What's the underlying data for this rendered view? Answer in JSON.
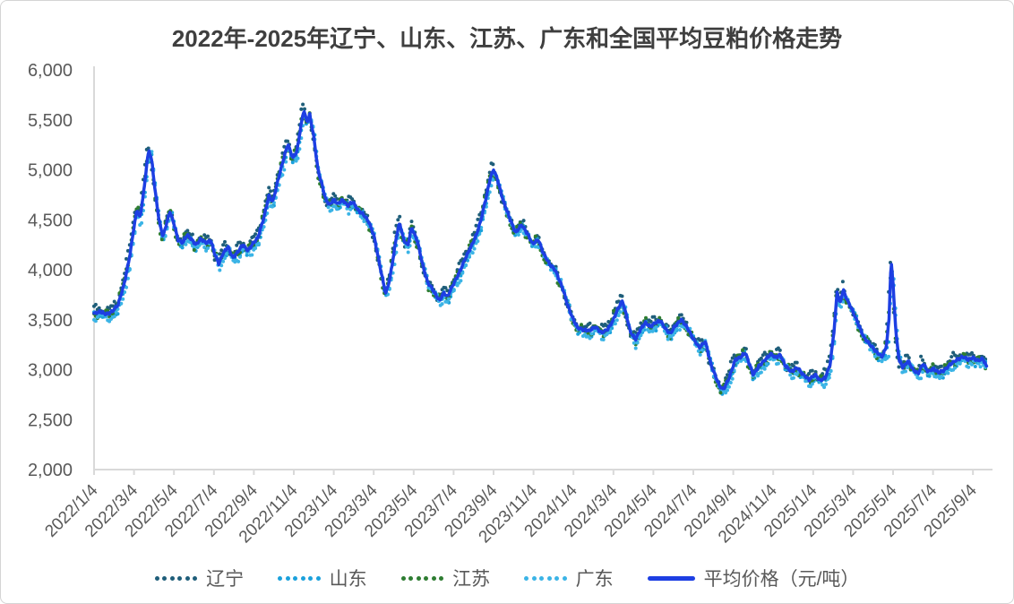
{
  "window": {
    "background": "#ffffff",
    "border_color": "#d4d4d4"
  },
  "title": "2022年-2025年辽宁、山东、江苏、广东和全国平均豆粕价格走势",
  "colors": {
    "title_text": "#3f3f3f",
    "axis_line": "#d9d9d9",
    "tick_text": "#595959",
    "average_line": "#1d3fe3",
    "liaoning": "#1f5e7a",
    "shandong": "#1ba1dc",
    "jiangsu": "#2e7d32",
    "guangdong": "#3bb4e6"
  },
  "chart_data": {
    "type": "line",
    "title": "2022年-2025年辽宁、山东、江苏、广东和全国平均豆粕价格走势",
    "xlabel": "",
    "ylabel": "元/吨",
    "ylim": [
      2000,
      6000
    ],
    "grid": false,
    "legend_position": "bottom",
    "y_axis": {
      "min": 2000,
      "max": 6000,
      "tick_step": 500,
      "tick_labels": [
        "6,000",
        "5,500",
        "5,000",
        "4,500",
        "4,000",
        "3,500",
        "3,000",
        "2,500",
        "2,000"
      ]
    },
    "x_axis": {
      "tick_interval_months": 2,
      "tick_labels": [
        "2022/1/4",
        "2022/3/4",
        "2022/5/4",
        "2022/7/4",
        "2022/9/4",
        "2022/11/4",
        "2023/1/4",
        "2023/3/4",
        "2023/5/4",
        "2023/7/4",
        "2023/9/4",
        "2023/11/4",
        "2024/1/4",
        "2024/3/4",
        "2024/5/4",
        "2024/7/4",
        "2024/9/4",
        "2024/11/4",
        "2025/1/4",
        "2025/3/4",
        "2025/5/4",
        "2025/7/4",
        "2025/9/4"
      ]
    },
    "average_series": {
      "id": "average",
      "name": "平均价格（元/吨）",
      "color": "#1d3fe3",
      "style": "solid",
      "points_format": "[months_since_2022_01, price_yuan_per_ton]",
      "points": [
        [
          0,
          3560
        ],
        [
          0.3,
          3580
        ],
        [
          0.6,
          3555
        ],
        [
          0.9,
          3580
        ],
        [
          1.2,
          3650
        ],
        [
          1.5,
          3850
        ],
        [
          1.8,
          4150
        ],
        [
          2.0,
          4430
        ],
        [
          2.15,
          4600
        ],
        [
          2.3,
          4520
        ],
        [
          2.5,
          4800
        ],
        [
          2.65,
          5080
        ],
        [
          2.75,
          5200
        ],
        [
          2.9,
          5080
        ],
        [
          3.05,
          4800
        ],
        [
          3.25,
          4500
        ],
        [
          3.45,
          4330
        ],
        [
          3.65,
          4480
        ],
        [
          3.8,
          4580
        ],
        [
          4.0,
          4460
        ],
        [
          4.2,
          4300
        ],
        [
          4.45,
          4270
        ],
        [
          4.65,
          4350
        ],
        [
          4.85,
          4310
        ],
        [
          5.1,
          4250
        ],
        [
          5.35,
          4310
        ],
        [
          5.6,
          4270
        ],
        [
          5.85,
          4290
        ],
        [
          6.05,
          4150
        ],
        [
          6.25,
          4060
        ],
        [
          6.45,
          4160
        ],
        [
          6.7,
          4230
        ],
        [
          6.95,
          4120
        ],
        [
          7.2,
          4180
        ],
        [
          7.45,
          4250
        ],
        [
          7.7,
          4190
        ],
        [
          7.95,
          4260
        ],
        [
          8.2,
          4320
        ],
        [
          8.5,
          4520
        ],
        [
          8.75,
          4740
        ],
        [
          8.95,
          4680
        ],
        [
          9.2,
          4890
        ],
        [
          9.45,
          5080
        ],
        [
          9.7,
          5260
        ],
        [
          9.95,
          5120
        ],
        [
          10.15,
          5180
        ],
        [
          10.35,
          5430
        ],
        [
          10.5,
          5600
        ],
        [
          10.65,
          5480
        ],
        [
          10.8,
          5550
        ],
        [
          11.0,
          5330
        ],
        [
          11.2,
          5010
        ],
        [
          11.4,
          4860
        ],
        [
          11.6,
          4700
        ],
        [
          11.8,
          4650
        ],
        [
          12.0,
          4700
        ],
        [
          12.2,
          4660
        ],
        [
          12.45,
          4700
        ],
        [
          12.7,
          4640
        ],
        [
          12.95,
          4680
        ],
        [
          13.2,
          4600
        ],
        [
          13.5,
          4550
        ],
        [
          13.75,
          4480
        ],
        [
          14.0,
          4350
        ],
        [
          14.2,
          4150
        ],
        [
          14.4,
          3950
        ],
        [
          14.6,
          3760
        ],
        [
          14.8,
          3900
        ],
        [
          15.0,
          4150
        ],
        [
          15.15,
          4350
        ],
        [
          15.3,
          4470
        ],
        [
          15.5,
          4300
        ],
        [
          15.7,
          4240
        ],
        [
          15.9,
          4420
        ],
        [
          16.05,
          4350
        ],
        [
          16.2,
          4280
        ],
        [
          16.45,
          4050
        ],
        [
          16.7,
          3870
        ],
        [
          16.9,
          3820
        ],
        [
          17.1,
          3750
        ],
        [
          17.3,
          3690
        ],
        [
          17.5,
          3770
        ],
        [
          17.7,
          3730
        ],
        [
          17.9,
          3820
        ],
        [
          18.1,
          3900
        ],
        [
          18.35,
          4000
        ],
        [
          18.6,
          4120
        ],
        [
          18.85,
          4220
        ],
        [
          19.1,
          4330
        ],
        [
          19.35,
          4480
        ],
        [
          19.6,
          4700
        ],
        [
          19.85,
          4930
        ],
        [
          20.0,
          5000
        ],
        [
          20.2,
          4900
        ],
        [
          20.5,
          4680
        ],
        [
          20.8,
          4520
        ],
        [
          21.1,
          4370
        ],
        [
          21.4,
          4450
        ],
        [
          21.7,
          4360
        ],
        [
          21.95,
          4260
        ],
        [
          22.25,
          4300
        ],
        [
          22.5,
          4160
        ],
        [
          22.8,
          4060
        ],
        [
          23.1,
          3990
        ],
        [
          23.45,
          3820
        ],
        [
          23.7,
          3650
        ],
        [
          23.95,
          3520
        ],
        [
          24.2,
          3420
        ],
        [
          24.5,
          3400
        ],
        [
          24.8,
          3390
        ],
        [
          25.1,
          3430
        ],
        [
          25.4,
          3370
        ],
        [
          25.7,
          3400
        ],
        [
          25.95,
          3480
        ],
        [
          26.2,
          3600
        ],
        [
          26.45,
          3690
        ],
        [
          26.6,
          3580
        ],
        [
          26.85,
          3380
        ],
        [
          27.1,
          3300
        ],
        [
          27.35,
          3400
        ],
        [
          27.6,
          3470
        ],
        [
          27.85,
          3430
        ],
        [
          28.1,
          3470
        ],
        [
          28.35,
          3490
        ],
        [
          28.6,
          3410
        ],
        [
          28.85,
          3360
        ],
        [
          29.1,
          3440
        ],
        [
          29.4,
          3500
        ],
        [
          29.7,
          3420
        ],
        [
          30.0,
          3310
        ],
        [
          30.3,
          3220
        ],
        [
          30.6,
          3280
        ],
        [
          30.9,
          3040
        ],
        [
          31.3,
          2840
        ],
        [
          31.5,
          2800
        ],
        [
          31.8,
          2920
        ],
        [
          32.1,
          3100
        ],
        [
          32.4,
          3130
        ],
        [
          32.6,
          3170
        ],
        [
          32.8,
          3060
        ],
        [
          33.0,
          2950
        ],
        [
          33.3,
          3040
        ],
        [
          33.6,
          3100
        ],
        [
          33.9,
          3160
        ],
        [
          34.1,
          3120
        ],
        [
          34.35,
          3150
        ],
        [
          34.6,
          3040
        ],
        [
          34.9,
          2980
        ],
        [
          35.2,
          3020
        ],
        [
          35.5,
          2950
        ],
        [
          35.8,
          2900
        ],
        [
          36.1,
          2950
        ],
        [
          36.35,
          2890
        ],
        [
          36.6,
          2920
        ],
        [
          36.85,
          3050
        ],
        [
          37.05,
          3400
        ],
        [
          37.2,
          3780
        ],
        [
          37.35,
          3660
        ],
        [
          37.5,
          3800
        ],
        [
          37.65,
          3720
        ],
        [
          37.95,
          3600
        ],
        [
          38.25,
          3460
        ],
        [
          38.55,
          3320
        ],
        [
          38.85,
          3250
        ],
        [
          39.15,
          3180
        ],
        [
          39.45,
          3130
        ],
        [
          39.65,
          3220
        ],
        [
          39.8,
          3500
        ],
        [
          39.9,
          4100
        ],
        [
          40.0,
          3850
        ],
        [
          40.15,
          3350
        ],
        [
          40.3,
          3100
        ],
        [
          40.5,
          3020
        ],
        [
          40.75,
          3090
        ],
        [
          41.0,
          3000
        ],
        [
          41.25,
          2960
        ],
        [
          41.5,
          3060
        ],
        [
          41.75,
          2980
        ],
        [
          42.0,
          3010
        ],
        [
          42.3,
          2970
        ],
        [
          42.6,
          3000
        ],
        [
          42.9,
          3060
        ],
        [
          43.2,
          3100
        ],
        [
          43.5,
          3130
        ],
        [
          43.75,
          3100
        ],
        [
          44.0,
          3120
        ],
        [
          44.25,
          3090
        ],
        [
          44.5,
          3110
        ],
        [
          44.7,
          3020
        ]
      ]
    },
    "province_series": [
      {
        "id": "liaoning",
        "name": "辽宁",
        "color": "#1f5e7a",
        "style": "dotted",
        "relation": "tracks average closely",
        "render": {
          "bias": 30,
          "amplitude": 55,
          "lag": 0.28,
          "seed": 1
        }
      },
      {
        "id": "shandong",
        "name": "山东",
        "color": "#1ba1dc",
        "style": "dotted",
        "relation": "tracks average closely",
        "render": {
          "bias": -25,
          "amplitude": 50,
          "lag": -0.22,
          "seed": 2
        }
      },
      {
        "id": "jiangsu",
        "name": "江苏",
        "color": "#2e7d32",
        "style": "dotted",
        "relation": "tracks average closely",
        "render": {
          "bias": -5,
          "amplitude": 60,
          "lag": 0.16,
          "seed": 3
        }
      },
      {
        "id": "guangdong",
        "name": "广东",
        "color": "#3bb4e6",
        "style": "dotted",
        "relation": "tracks average closely",
        "render": {
          "bias": -40,
          "amplitude": 48,
          "lag": -0.3,
          "seed": 4
        }
      }
    ]
  },
  "legend": {
    "order": [
      "liaoning",
      "shandong",
      "jiangsu",
      "guangdong",
      "average"
    ]
  }
}
